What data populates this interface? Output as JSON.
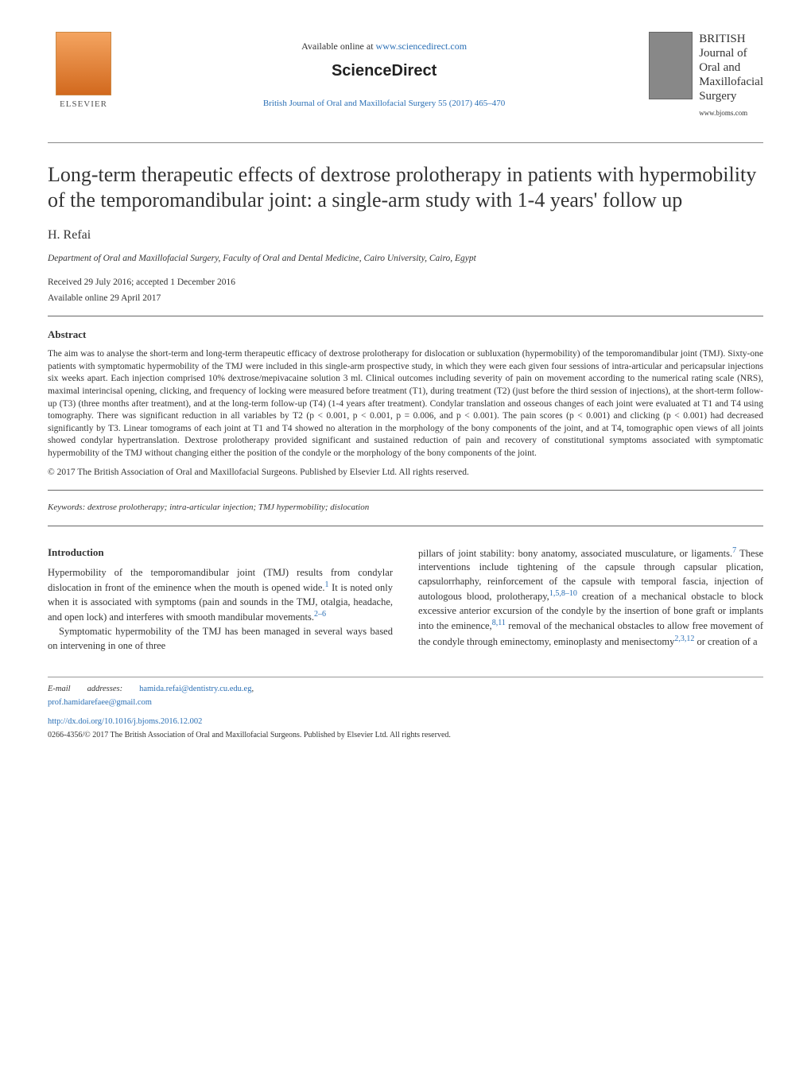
{
  "header": {
    "publisher": "ELSEVIER",
    "available_prefix": "Available online at ",
    "available_url": "www.sciencedirect.com",
    "sciencedirect": "ScienceDirect",
    "citation": "British Journal of Oral and Maxillofacial Surgery 55 (2017) 465–470",
    "journal_title_l1": "BRITISH",
    "journal_title_l2": "Journal of",
    "journal_title_l3": "Oral and",
    "journal_title_l4": "Maxillofacial",
    "journal_title_l5": "Surgery",
    "journal_url": "www.bjoms.com"
  },
  "article": {
    "title": "Long-term therapeutic effects of dextrose prolotherapy in patients with hypermobility of the temporomandibular joint: a single-arm study with 1-4 years' follow up",
    "author": "H. Refai",
    "affiliation": "Department of Oral and Maxillofacial Surgery, Faculty of Oral and Dental Medicine, Cairo University, Cairo, Egypt",
    "received": "Received 29 July 2016; accepted 1 December 2016",
    "available": "Available online 29 April 2017"
  },
  "abstract": {
    "heading": "Abstract",
    "text": "The aim was to analyse the short-term and long-term therapeutic efficacy of dextrose prolotherapy for dislocation or subluxation (hypermobility) of the temporomandibular joint (TMJ). Sixty-one patients with symptomatic hypermobility of the TMJ were included in this single-arm prospective study, in which they were each given four sessions of intra-articular and pericapsular injections six weeks apart. Each injection comprised 10% dextrose/mepivacaine solution 3 ml. Clinical outcomes including severity of pain on movement according to the numerical rating scale (NRS), maximal interincisal opening, clicking, and frequency of locking were measured before treatment (T1), during treatment (T2) (just before the third session of injections), at the short-term follow-up (T3) (three months after treatment), and at the long-term follow-up (T4) (1-4 years after treatment). Condylar translation and osseous changes of each joint were evaluated at T1 and T4 using tomography. There was significant reduction in all variables by T2 (p < 0.001, p < 0.001, p = 0.006, and p < 0.001). The pain scores (p < 0.001) and clicking (p < 0.001) had decreased significantly by T3. Linear tomograms of each joint at T1 and T4 showed no alteration in the morphology of the bony components of the joint, and at T4, tomographic open views of all joints showed condylar hypertranslation. Dextrose prolotherapy provided significant and sustained reduction of pain and recovery of constitutional symptoms associated with symptomatic hypermobility of the TMJ without changing either the position of the condyle or the morphology of the bony components of the joint.",
    "copyright": "© 2017 The British Association of Oral and Maxillofacial Surgeons. Published by Elsevier Ltd. All rights reserved."
  },
  "keywords": {
    "label": "Keywords:  ",
    "text": "dextrose prolotherapy; intra-articular injection; TMJ hypermobility; dislocation"
  },
  "body": {
    "intro_heading": "Introduction",
    "col1_p1_a": "Hypermobility of the temporomandibular joint (TMJ) results from condylar dislocation in front of the eminence when the mouth is opened wide.",
    "col1_ref1": "1",
    "col1_p1_b": " It is noted only when it is associated with symptoms (pain and sounds in the TMJ, otalgia, headache, and open lock) and interferes with smooth mandibular movements.",
    "col1_ref2": "2–6",
    "col1_p2": "Symptomatic hypermobility of the TMJ has been managed in several ways based on intervening in one of three",
    "col2_a": "pillars of joint stability: bony anatomy, associated musculature, or ligaments.",
    "col2_ref7": "7",
    "col2_b": " These interventions include tightening of the capsule through capsular plication, capsulorrhaphy, reinforcement of the capsule with temporal fascia, injection of autologous blood, prolotherapy,",
    "col2_ref_prolo": "1,5,8–10",
    "col2_c": " creation of a mechanical obstacle to block excessive anterior excursion of the condyle by the insertion of bone graft or implants into the eminence,",
    "col2_ref811": "8,11",
    "col2_d": " removal of the mechanical obstacles to allow free movement of the condyle through eminectomy, eminoplasty and menisectomy",
    "col2_ref2312": "2,3,12",
    "col2_e": " or creation of a"
  },
  "footer": {
    "email_label": "E-mail",
    "addresses_label": "addresses:",
    "email1": "hamida.refai@dentistry.cu.edu.eg",
    "email2": "prof.hamidarefaee@gmail.com",
    "doi": "http://dx.doi.org/10.1016/j.bjoms.2016.12.002",
    "copyright": "0266-4356/© 2017 The British Association of Oral and Maxillofacial Surgeons. Published by Elsevier Ltd. All rights reserved."
  },
  "colors": {
    "link": "#2a6fb5",
    "text": "#333333",
    "rule": "#888888"
  }
}
